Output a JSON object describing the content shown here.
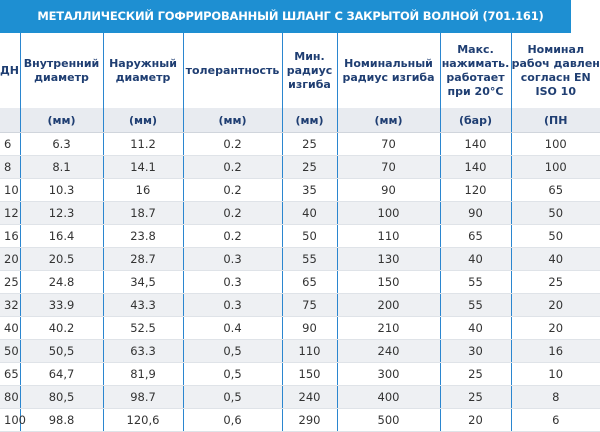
{
  "title": "МЕТАЛЛИЧЕСКИЙ ГОФРИРОВАННЫЙ ШЛАНГ С ЗАКРЫТОЙ ВОЛНОЙ (701.161)",
  "table": {
    "headers": [
      "ДН",
      "Внутренний диаметр",
      "Наружный диаметр",
      "толерантность",
      "Мин. радиус изгиба",
      "Номинальный радиус изгиба",
      "Макс. нажимать. работает при 20°C",
      "Номинал рабоч давлен согласн EN ISO 10"
    ],
    "units": [
      "",
      "(мм)",
      "(мм)",
      "(мм)",
      "(мм)",
      "(мм)",
      "(бар)",
      "(ПН"
    ],
    "rows": [
      [
        "6",
        "6.3",
        "11.2",
        "0.2",
        "25",
        "70",
        "140",
        "100"
      ],
      [
        "8",
        "8.1",
        "14.1",
        "0.2",
        "25",
        "70",
        "140",
        "100"
      ],
      [
        "10",
        "10.3",
        "16",
        "0.2",
        "35",
        "90",
        "120",
        "65"
      ],
      [
        "12",
        "12.3",
        "18.7",
        "0.2",
        "40",
        "100",
        "90",
        "50"
      ],
      [
        "16",
        "16.4",
        "23.8",
        "0.2",
        "50",
        "110",
        "65",
        "50"
      ],
      [
        "20",
        "20.5",
        "28.7",
        "0.3",
        "55",
        "130",
        "40",
        "40"
      ],
      [
        "25",
        "24.8",
        "34,5",
        "0.3",
        "65",
        "150",
        "55",
        "25"
      ],
      [
        "32",
        "33.9",
        "43.3",
        "0.3",
        "75",
        "200",
        "55",
        "20"
      ],
      [
        "40",
        "40.2",
        "52.5",
        "0.4",
        "90",
        "210",
        "40",
        "20"
      ],
      [
        "50",
        "50,5",
        "63.3",
        "0,5",
        "110",
        "240",
        "30",
        "16"
      ],
      [
        "65",
        "64,7",
        "81,9",
        "0,5",
        "150",
        "300",
        "25",
        "10"
      ],
      [
        "80",
        "80,5",
        "98.7",
        "0,5",
        "240",
        "400",
        "25",
        "8"
      ],
      [
        "100",
        "98.8",
        "120,6",
        "0,6",
        "290",
        "500",
        "20",
        "6"
      ]
    ]
  }
}
